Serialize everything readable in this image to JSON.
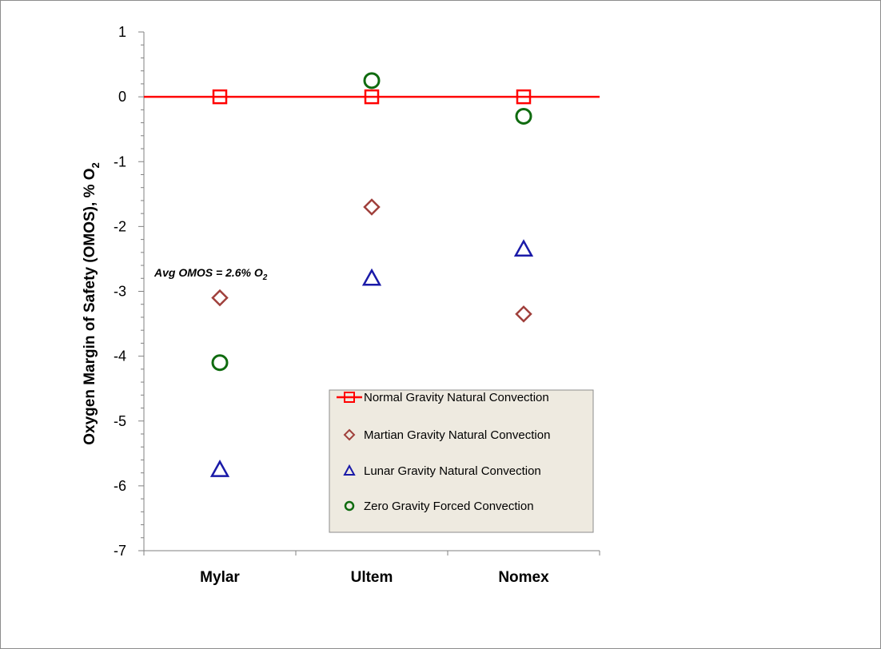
{
  "chart_data": {
    "type": "scatter",
    "categories": [
      "Mylar",
      "Ultem",
      "Nomex"
    ],
    "ylabel": {
      "main": "Oxygen Margin of Safety (OMOS), % O",
      "sub": "2"
    },
    "ylim": [
      -7,
      1
    ],
    "yticks": [
      1,
      0,
      -1,
      -2,
      -3,
      -4,
      -5,
      -6,
      -7
    ],
    "grid": false,
    "legend_position": "bottom-right",
    "series": [
      {
        "name": "Normal Gravity Natural Convection",
        "marker": "square",
        "line": true,
        "color": "#ff0000",
        "values": [
          0,
          0,
          0
        ]
      },
      {
        "name": "Martian Gravity Natural Convection",
        "marker": "diamond",
        "line": false,
        "color": "#a0403c",
        "values": [
          -3.1,
          -1.7,
          -3.35
        ]
      },
      {
        "name": "Lunar Gravity Natural Convection",
        "marker": "triangle",
        "line": false,
        "color": "#1a1aa8",
        "values": [
          -5.75,
          -2.8,
          -2.35
        ]
      },
      {
        "name": "Zero Gravity Forced Convection",
        "marker": "circle",
        "line": false,
        "color": "#0f6b0f",
        "values": [
          -4.1,
          0.25,
          -0.3
        ]
      }
    ],
    "annotation": {
      "main": "Avg OMOS = 2.6% O",
      "sub": "2"
    }
  }
}
